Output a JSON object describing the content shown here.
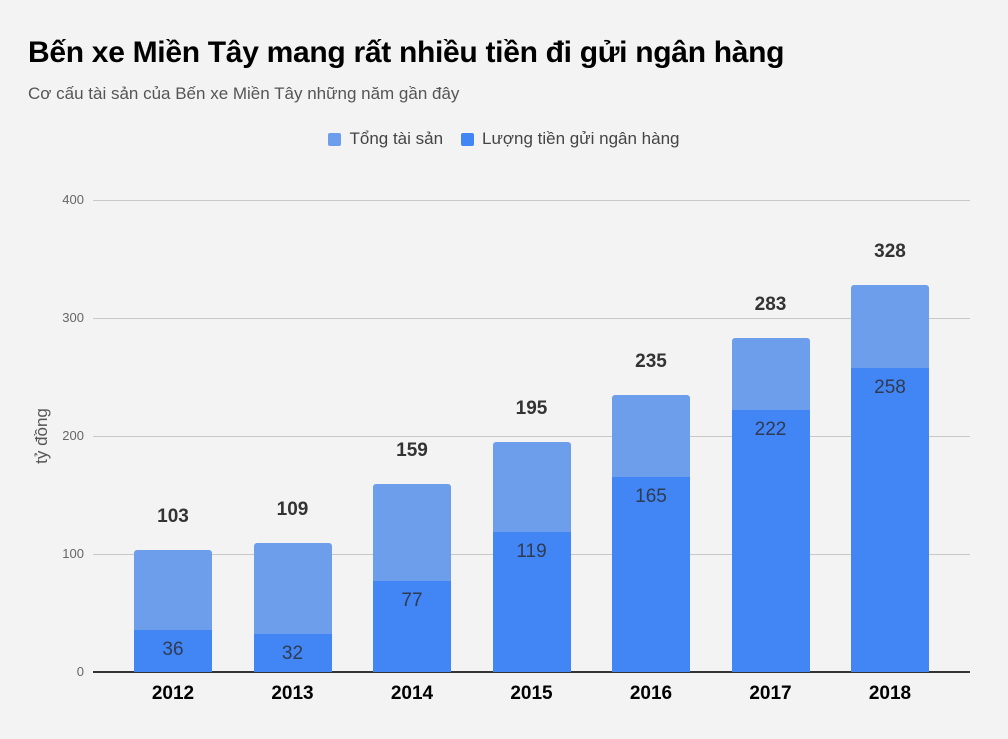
{
  "header": {
    "title": "Bến xe Miền Tây mang rất nhiều tiền đi gửi ngân hàng",
    "subtitle": "Cơ cấu tài sản của Bến xe Miền Tây những năm gần đây"
  },
  "legend": [
    {
      "label": "Tổng tài sản",
      "color": "#6d9eeb"
    },
    {
      "label": "Lượng tiền gửi ngân hàng",
      "color": "#4285f4"
    }
  ],
  "colors": {
    "total": "#6d9eeb",
    "deposit": "#4285f4",
    "background": "#f3f3f3"
  },
  "chart_data": {
    "type": "bar",
    "stacking": "overlay",
    "title": "Bến xe Miền Tây mang rất nhiều tiền đi gửi ngân hàng",
    "subtitle": "Cơ cấu tài sản của Bến xe Miền Tây những năm gần đây",
    "xlabel": "",
    "ylabel": "tỷ đồng",
    "ylim": [
      0,
      400
    ],
    "yticks": [
      0,
      100,
      200,
      300,
      400
    ],
    "grid": true,
    "legend_position": "top",
    "categories": [
      "2012",
      "2013",
      "2014",
      "2015",
      "2016",
      "2017",
      "2018"
    ],
    "series": [
      {
        "name": "Tổng tài sản",
        "values": [
          103,
          109,
          159,
          195,
          235,
          283,
          328
        ]
      },
      {
        "name": "Lượng tiền gửi ngân hàng",
        "values": [
          36,
          32,
          77,
          119,
          165,
          222,
          258
        ]
      }
    ]
  }
}
